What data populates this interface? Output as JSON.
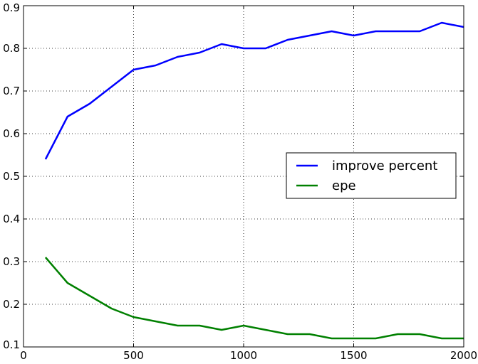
{
  "chart_data": {
    "type": "line",
    "title": "",
    "xlabel": "",
    "ylabel": "",
    "xlim": [
      0,
      2000
    ],
    "ylim": [
      0.1,
      0.9
    ],
    "xticks": [
      0,
      500,
      1000,
      1500,
      2000
    ],
    "xtick_labels": [
      "0",
      "500",
      "1000",
      "1500",
      "2000"
    ],
    "yticks": [
      0.1,
      0.2,
      0.3,
      0.4,
      0.5,
      0.6,
      0.7,
      0.8,
      0.9
    ],
    "ytick_labels": [
      "0.1",
      "0.2",
      "0.3",
      "0.4",
      "0.5",
      "0.6",
      "0.7",
      "0.8",
      "0.9"
    ],
    "grid": true,
    "legend_position": "center-right",
    "x": [
      100,
      200,
      300,
      400,
      500,
      600,
      700,
      800,
      900,
      1000,
      1100,
      1200,
      1300,
      1400,
      1500,
      1600,
      1700,
      1800,
      1900,
      2000
    ],
    "series": [
      {
        "name": "improve percent",
        "color": "#0000ff",
        "values": [
          0.54,
          0.64,
          0.67,
          0.71,
          0.75,
          0.76,
          0.78,
          0.79,
          0.81,
          0.8,
          0.8,
          0.82,
          0.83,
          0.84,
          0.83,
          0.84,
          0.84,
          0.84,
          0.86,
          0.85
        ]
      },
      {
        "name": "epe",
        "color": "#008000",
        "values": [
          0.31,
          0.25,
          0.22,
          0.19,
          0.17,
          0.16,
          0.15,
          0.15,
          0.14,
          0.15,
          0.14,
          0.13,
          0.13,
          0.12,
          0.12,
          0.12,
          0.13,
          0.13,
          0.12,
          0.12
        ]
      }
    ]
  }
}
